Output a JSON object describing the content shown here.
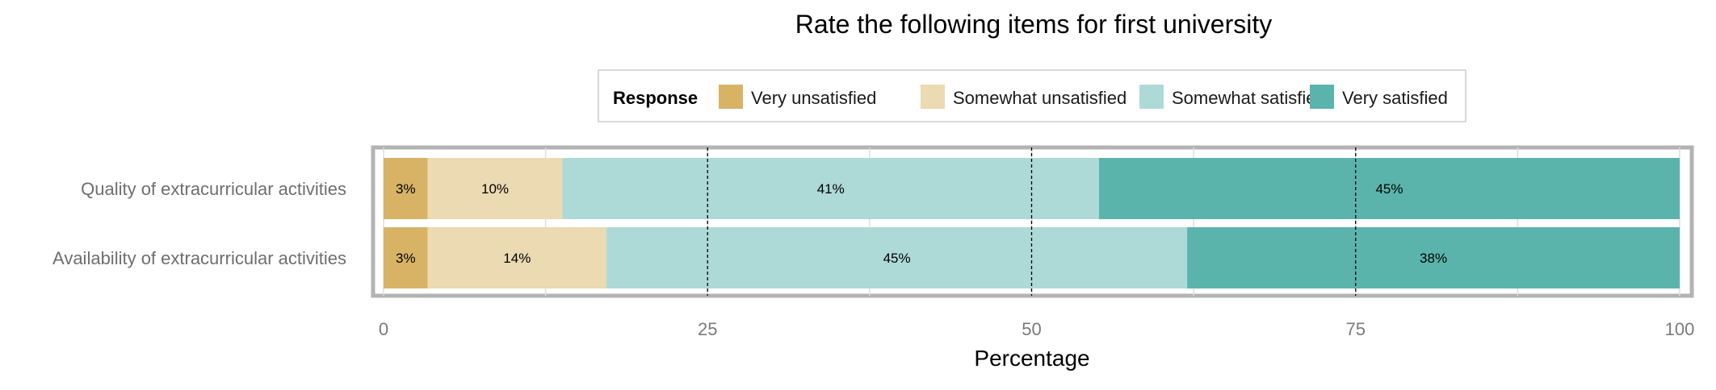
{
  "chart_data": {
    "type": "bar",
    "orientation": "horizontal",
    "stacked": true,
    "title": "Rate the following items for first university",
    "xlabel": "Percentage",
    "ylabel": "",
    "xlim": [
      0,
      100
    ],
    "x_ticks": [
      "0",
      "25",
      "50",
      "75",
      "100"
    ],
    "legend": {
      "title": "Response",
      "placement": "top-center",
      "entries": [
        "Very unsatisfied",
        "Somewhat unsatisfied",
        "Somewhat satisfied",
        "Very satisfied"
      ]
    },
    "categories": [
      "Quality of extracurricular activities",
      "Availability of extracurricular activities"
    ],
    "series": [
      {
        "name": "Very unsatisfied",
        "color": "#D8B365",
        "values": [
          3.4,
          3.4
        ],
        "labels": [
          "3%",
          "3%"
        ]
      },
      {
        "name": "Somewhat unsatisfied",
        "color": "#EBDAB2",
        "values": [
          10.4,
          13.8
        ],
        "labels": [
          "10%",
          "14%"
        ]
      },
      {
        "name": "Somewhat satisfied",
        "color": "#ADD9D6",
        "values": [
          41.4,
          44.8
        ],
        "labels": [
          "41%",
          "45%"
        ]
      },
      {
        "name": "Very satisfied",
        "color": "#5AB4AC",
        "values": [
          44.8,
          38.0
        ],
        "labels": [
          "45%",
          "38%"
        ]
      }
    ],
    "grid": true,
    "reference_lines": [
      25,
      50,
      75
    ]
  }
}
